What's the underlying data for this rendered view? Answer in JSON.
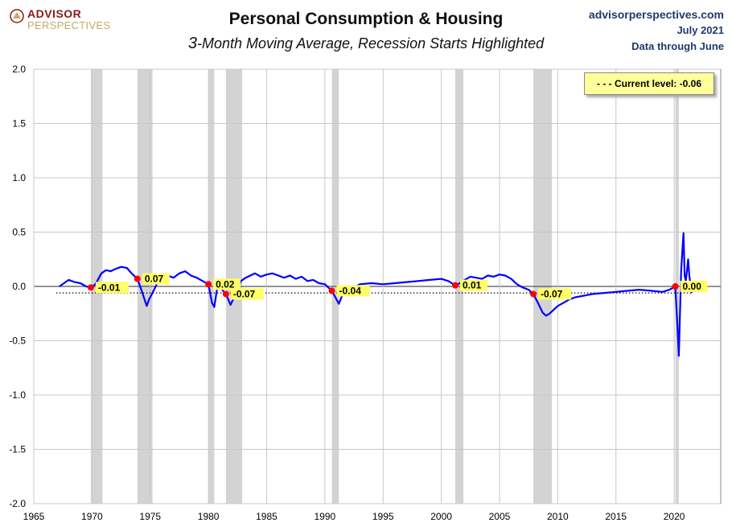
{
  "brand": {
    "line1": "ADVISOR",
    "line2": "PERSPECTIVES"
  },
  "title": "Personal Consumption & Housing",
  "subtitle_lead": "3",
  "subtitle_rest": "-Month Moving Average, Recession Starts Highlighted",
  "source": {
    "site": "advisorperspectives.com",
    "date": "July 2021",
    "note": "Data through June"
  },
  "current_level_label": "- - -  Current level:  -0.06",
  "colors": {
    "series": "#0000ff",
    "recession": "#d3d3d3",
    "marker": "#ff0000",
    "label_bg": "#ffff66",
    "negative_tick": "#cc0000"
  },
  "chart_data": {
    "type": "line",
    "title": "Personal Consumption & Housing",
    "subtitle": "3-Month Moving Average, Recession Starts Highlighted",
    "xlim": [
      1965,
      2024
    ],
    "ylim": [
      -2.0,
      2.0
    ],
    "x_ticks": [
      1965,
      1970,
      1975,
      1980,
      1985,
      1990,
      1995,
      2000,
      2005,
      2010,
      2015,
      2020
    ],
    "y_ticks": [
      2.0,
      1.5,
      1.0,
      0.5,
      0.0,
      -0.5,
      -1.0,
      -1.5,
      -2.0
    ],
    "y_tick_labels": [
      "2.0",
      "1.5",
      "1.0",
      "0.5",
      "0.0",
      "-0.5",
      "-1.0",
      "-1.5",
      "-2.0"
    ],
    "grid": true,
    "current_level": -0.06,
    "recessions": [
      [
        1969.9,
        1970.9
      ],
      [
        1973.9,
        1975.2
      ],
      [
        1980.0,
        1980.5
      ],
      [
        1981.5,
        1982.9
      ],
      [
        1990.6,
        1991.2
      ],
      [
        2001.2,
        2001.9
      ],
      [
        2007.9,
        2009.5
      ],
      [
        2020.1,
        2020.4
      ]
    ],
    "recession_start_labels": [
      {
        "x": 1969.9,
        "y": -0.01,
        "label": "-0.01"
      },
      {
        "x": 1973.9,
        "y": 0.07,
        "label": "0.07"
      },
      {
        "x": 1980.0,
        "y": 0.02,
        "label": "0.02"
      },
      {
        "x": 1981.5,
        "y": -0.07,
        "label": "-0.07"
      },
      {
        "x": 1990.6,
        "y": -0.04,
        "label": "-0.04"
      },
      {
        "x": 2001.2,
        "y": 0.01,
        "label": "0.01"
      },
      {
        "x": 2007.9,
        "y": -0.07,
        "label": "-0.07"
      },
      {
        "x": 2020.1,
        "y": 0.0,
        "label": "0.00"
      }
    ],
    "series": [
      {
        "x": [
          1967.2,
          1967.6,
          1968.0,
          1968.5,
          1969.0,
          1969.5,
          1969.9,
          1970.3,
          1970.8,
          1971.2,
          1971.6,
          1972.0,
          1972.5,
          1973.0,
          1973.4,
          1973.9,
          1974.3,
          1974.7,
          1974.9,
          1975.2,
          1975.6,
          1976.0,
          1976.5,
          1977.0,
          1977.5,
          1978.0,
          1978.5,
          1979.0,
          1979.5,
          1980.0,
          1980.3,
          1980.5,
          1980.8,
          1981.1,
          1981.5,
          1981.9,
          1982.3,
          1982.8,
          1983.2,
          1983.6,
          1984.0,
          1984.5,
          1985.0,
          1985.5,
          1986.0,
          1986.5,
          1987.0,
          1987.5,
          1988.0,
          1988.5,
          1989.0,
          1989.5,
          1990.0,
          1990.6,
          1990.9,
          1991.2,
          1991.5,
          1992.0,
          1992.5,
          1993.0,
          1994.0,
          1995.0,
          1996.0,
          1997.0,
          1998.0,
          1999.0,
          2000.0,
          2000.6,
          2001.2,
          2001.6,
          2002.0,
          2002.5,
          2003.0,
          2003.5,
          2004.0,
          2004.5,
          2005.0,
          2005.5,
          2006.0,
          2006.5,
          2007.0,
          2007.5,
          2007.9,
          2008.3,
          2008.7,
          2009.0,
          2009.3,
          2009.6,
          2010.0,
          2010.5,
          2011.0,
          2011.5,
          2012.0,
          2013.0,
          2014.0,
          2015.0,
          2016.0,
          2017.0,
          2018.0,
          2019.0,
          2019.6,
          2020.1,
          2020.3,
          2020.4,
          2020.6,
          2020.8,
          2020.9,
          2021.0,
          2021.2,
          2021.3,
          2021.5
        ],
        "y": [
          0.0,
          0.03,
          0.06,
          0.04,
          0.03,
          0.0,
          -0.01,
          0.02,
          0.12,
          0.15,
          0.14,
          0.16,
          0.18,
          0.17,
          0.12,
          0.07,
          -0.05,
          -0.18,
          -0.12,
          -0.06,
          0.03,
          0.06,
          0.1,
          0.08,
          0.12,
          0.14,
          0.1,
          0.08,
          0.05,
          0.02,
          -0.15,
          -0.19,
          0.02,
          -0.02,
          -0.07,
          -0.17,
          -0.08,
          0.05,
          0.08,
          0.1,
          0.12,
          0.09,
          0.11,
          0.12,
          0.1,
          0.08,
          0.1,
          0.07,
          0.09,
          0.05,
          0.06,
          0.03,
          0.02,
          -0.04,
          -0.1,
          -0.16,
          -0.08,
          -0.05,
          -0.01,
          0.02,
          0.03,
          0.02,
          0.03,
          0.04,
          0.05,
          0.06,
          0.07,
          0.05,
          0.01,
          0.03,
          0.06,
          0.09,
          0.08,
          0.07,
          0.1,
          0.09,
          0.11,
          0.1,
          0.07,
          0.02,
          -0.01,
          -0.03,
          -0.07,
          -0.15,
          -0.24,
          -0.27,
          -0.25,
          -0.22,
          -0.18,
          -0.15,
          -0.12,
          -0.1,
          -0.09,
          -0.07,
          -0.06,
          -0.05,
          -0.04,
          -0.03,
          -0.04,
          -0.05,
          -0.03,
          0.0,
          -0.4,
          -0.64,
          0.15,
          0.49,
          0.1,
          0.05,
          0.25,
          0.1,
          -0.06
        ]
      }
    ]
  }
}
